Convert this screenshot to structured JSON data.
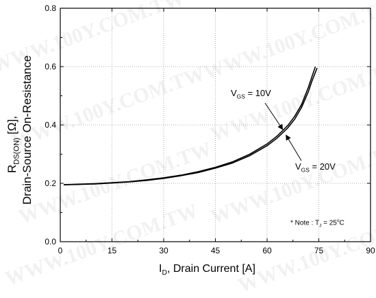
{
  "chart_data": {
    "type": "line",
    "xlabel_parts": {
      "pre": "I",
      "sub": "D",
      "post": ", Drain Current [A]"
    },
    "ylabel_line1_parts": {
      "pre": "R",
      "sub": "DS(ON)",
      "post": " [Ω],"
    },
    "ylabel_line2": "Drain-Source On-Resistance",
    "xlim": [
      0,
      90
    ],
    "ylim": [
      0.0,
      0.8
    ],
    "x_ticks": [
      "0",
      "15",
      "30",
      "45",
      "60",
      "75",
      "90"
    ],
    "y_ticks": [
      "0.0",
      "0.2",
      "0.4",
      "0.6",
      "0.8"
    ],
    "x_tick_values": [
      0,
      15,
      30,
      45,
      60,
      75,
      90
    ],
    "y_tick_values": [
      0.0,
      0.2,
      0.4,
      0.6,
      0.8
    ],
    "grid": true,
    "series": [
      {
        "x": [
          1,
          5,
          10,
          15,
          20,
          25,
          30,
          35,
          40,
          45,
          50,
          55,
          60,
          63,
          66,
          68,
          70,
          72,
          73,
          74
        ],
        "y": [
          0.195,
          0.197,
          0.199,
          0.202,
          0.206,
          0.212,
          0.219,
          0.228,
          0.24,
          0.255,
          0.274,
          0.3,
          0.335,
          0.363,
          0.398,
          0.43,
          0.47,
          0.53,
          0.565,
          0.6
        ]
      },
      {
        "x": [
          1,
          5,
          10,
          15,
          20,
          25,
          30,
          35,
          40,
          45,
          50,
          55,
          60,
          63,
          66,
          68,
          70,
          72,
          73,
          74.5
        ],
        "y": [
          0.195,
          0.196,
          0.198,
          0.201,
          0.205,
          0.21,
          0.217,
          0.226,
          0.237,
          0.252,
          0.27,
          0.295,
          0.329,
          0.356,
          0.39,
          0.42,
          0.46,
          0.515,
          0.55,
          0.595
        ]
      }
    ],
    "annotations": [
      {
        "pre": "V",
        "sub": "GS",
        "post": " = 10V",
        "x": 64.5,
        "y": 0.385
      },
      {
        "pre": "V",
        "sub": "GS",
        "post": " = 20V",
        "x": 65.5,
        "y": 0.365
      }
    ],
    "note": {
      "pre": "* Note : T",
      "sub": "J",
      "mid": " = 25",
      "sup": "o",
      "post": "C"
    },
    "colors": {
      "line": "#000000",
      "grid": "#9a9a9a",
      "watermark": "#bcbcbc"
    }
  },
  "watermark_text": "WWW.100Y.COM.TW"
}
